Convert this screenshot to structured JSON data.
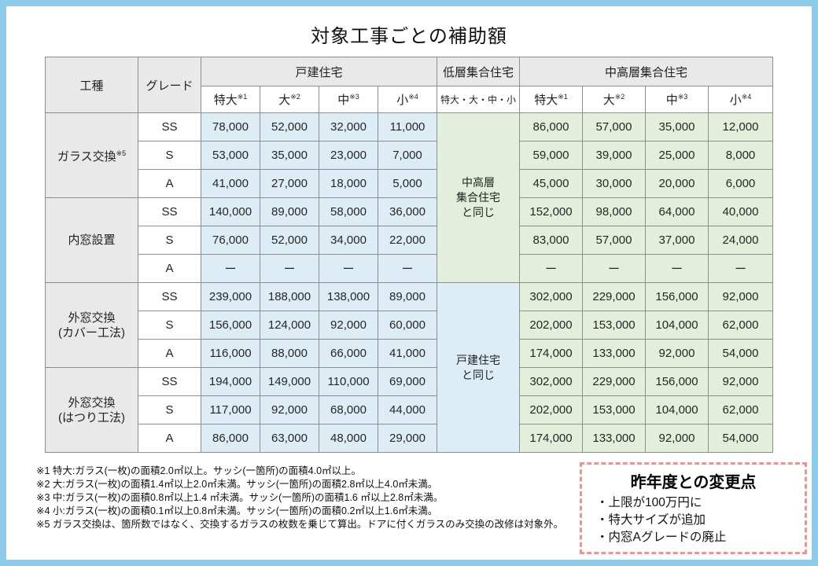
{
  "title": "対象工事ごとの補助額",
  "colors": {
    "frame_blue": "#8dcbea",
    "header_gray": "#e9e9e9",
    "cell_blue": "#ddedf5",
    "cell_green": "#e3efdb",
    "changes_box_pink": "#f59090",
    "grid_line": "#8d8d8d"
  },
  "table": {
    "header": {
      "col_worktype": "工種",
      "col_grade": "グレード",
      "group_detached": "戸建住宅",
      "group_lowrise": "低層集合住宅",
      "group_midhigh": "中高層集合住宅",
      "sizes": [
        {
          "label": "特大",
          "ref": "※1"
        },
        {
          "label": "大",
          "ref": "※2"
        },
        {
          "label": "中",
          "ref": "※3"
        },
        {
          "label": "小",
          "ref": "※4"
        }
      ],
      "lowrise_sizes": "特大・大・中・小"
    },
    "lowrise_merged": [
      {
        "lines": [
          "中高層",
          "集合住宅",
          "と同じ"
        ],
        "rowspan": 6,
        "bg": "green"
      },
      {
        "lines": [
          "戸建住宅",
          "と同じ"
        ],
        "rowspan": 6,
        "bg": "blue"
      }
    ],
    "groups": [
      {
        "label_lines": [
          "ガラス交換"
        ],
        "ref": "※5",
        "rows": [
          {
            "grade": "SS",
            "detached": [
              "78,000",
              "52,000",
              "32,000",
              "11,000"
            ],
            "midhigh": [
              "86,000",
              "57,000",
              "35,000",
              "12,000"
            ]
          },
          {
            "grade": "S",
            "detached": [
              "53,000",
              "35,000",
              "23,000",
              "7,000"
            ],
            "midhigh": [
              "59,000",
              "39,000",
              "25,000",
              "8,000"
            ]
          },
          {
            "grade": "A",
            "detached": [
              "41,000",
              "27,000",
              "18,000",
              "5,000"
            ],
            "midhigh": [
              "45,000",
              "30,000",
              "20,000",
              "6,000"
            ]
          }
        ]
      },
      {
        "label_lines": [
          "内窓設置"
        ],
        "ref": "",
        "rows": [
          {
            "grade": "SS",
            "detached": [
              "140,000",
              "89,000",
              "58,000",
              "36,000"
            ],
            "midhigh": [
              "152,000",
              "98,000",
              "64,000",
              "40,000"
            ]
          },
          {
            "grade": "S",
            "detached": [
              "76,000",
              "52,000",
              "34,000",
              "22,000"
            ],
            "midhigh": [
              "83,000",
              "57,000",
              "37,000",
              "24,000"
            ]
          },
          {
            "grade": "A",
            "detached": [
              "ー",
              "ー",
              "ー",
              "ー"
            ],
            "midhigh": [
              "ー",
              "ー",
              "ー",
              "ー"
            ]
          }
        ]
      },
      {
        "label_lines": [
          "外窓交換",
          "(カバー工法)"
        ],
        "ref": "",
        "rows": [
          {
            "grade": "SS",
            "detached": [
              "239,000",
              "188,000",
              "138,000",
              "89,000"
            ],
            "midhigh": [
              "302,000",
              "229,000",
              "156,000",
              "92,000"
            ]
          },
          {
            "grade": "S",
            "detached": [
              "156,000",
              "124,000",
              "92,000",
              "60,000"
            ],
            "midhigh": [
              "202,000",
              "153,000",
              "104,000",
              "62,000"
            ]
          },
          {
            "grade": "A",
            "detached": [
              "116,000",
              "88,000",
              "66,000",
              "41,000"
            ],
            "midhigh": [
              "174,000",
              "133,000",
              "92,000",
              "54,000"
            ]
          }
        ]
      },
      {
        "label_lines": [
          "外窓交換",
          "(はつり工法)"
        ],
        "ref": "",
        "rows": [
          {
            "grade": "SS",
            "detached": [
              "194,000",
              "149,000",
              "110,000",
              "69,000"
            ],
            "midhigh": [
              "302,000",
              "229,000",
              "156,000",
              "92,000"
            ]
          },
          {
            "grade": "S",
            "detached": [
              "117,000",
              "92,000",
              "68,000",
              "44,000"
            ],
            "midhigh": [
              "202,000",
              "153,000",
              "104,000",
              "62,000"
            ]
          },
          {
            "grade": "A",
            "detached": [
              "86,000",
              "63,000",
              "48,000",
              "29,000"
            ],
            "midhigh": [
              "174,000",
              "133,000",
              "92,000",
              "54,000"
            ]
          }
        ]
      }
    ]
  },
  "footnotes": [
    "※1 特大:ガラス(一枚)の面積2.0㎡以上。サッシ(一箇所)の面積4.0㎡以上。",
    "※2 大:ガラス(一枚)の面積1.4㎡以上2.0㎡未満。サッシ(一箇所)の面積2.8㎡以上4.0㎡未満。",
    "※3 中:ガラス(一枚)の面積0.8㎡以上1.4 ㎡未満。サッシ(一箇所)の面積1.6 ㎡以上2.8㎡未満。",
    "※4 小:ガラス(一枚)の面積0.1㎡以上0.8㎡未満。サッシ(一箇所)の面積0.2㎡以上1.6㎡未満。",
    "※5 ガラス交換は、箇所数ではなく、交換するガラスの枚数を乗じて算出。ドアに付くガラスのみ交換の改修は対象外。"
  ],
  "changes_box": {
    "title": "昨年度との変更点",
    "items": [
      "・上限が100万円に",
      "・特大サイズが追加",
      "・内窓Aグレードの廃止"
    ]
  }
}
